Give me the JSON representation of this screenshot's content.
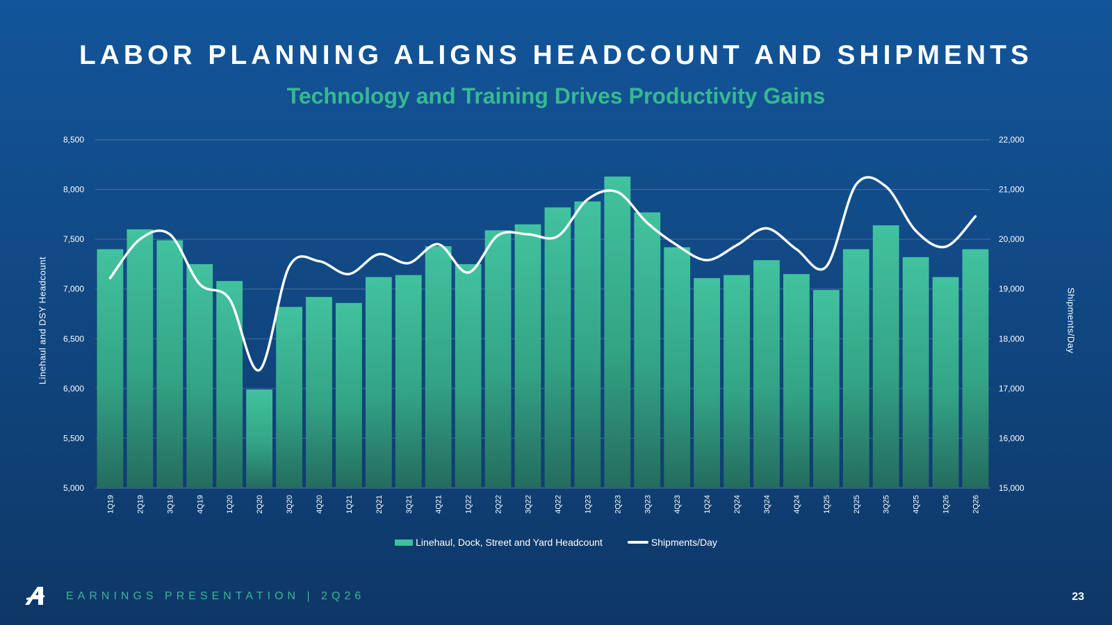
{
  "title": "LABOR PLANNING ALIGNS HEADCOUNT AND SHIPMENTS",
  "subtitle": "Technology and Training Drives Productivity Gains",
  "footer": {
    "text": "EARNINGS PRESENTATION  |  2Q26",
    "page_number": "23",
    "logo_icon": "company-logo-a-icon"
  },
  "colors": {
    "bar": "#3fbf9e",
    "line": "#ffffff",
    "subtitle": "#38b892",
    "background": "#12559a"
  },
  "chart_data": {
    "type": "bar",
    "combo": "bar-line-dual-axis",
    "categories": [
      "1Q19",
      "2Q19",
      "3Q19",
      "4Q19",
      "1Q20",
      "2Q20",
      "3Q20",
      "4Q20",
      "1Q21",
      "2Q21",
      "3Q21",
      "4Q21",
      "1Q22",
      "2Q22",
      "3Q22",
      "4Q22",
      "1Q23",
      "2Q23",
      "3Q23",
      "4Q23",
      "1Q24",
      "2Q24",
      "3Q24",
      "4Q24",
      "1Q25",
      "2Q25",
      "3Q25",
      "4Q25",
      "1Q26",
      "2Q26"
    ],
    "series": [
      {
        "name": "Linehaul, Dock, Street and Yard Headcount",
        "type": "bar",
        "axis": "left",
        "values": [
          7400,
          7600,
          7490,
          7250,
          7080,
          5990,
          6820,
          6920,
          6860,
          7120,
          7140,
          7430,
          7250,
          7590,
          7650,
          7820,
          7880,
          8130,
          7770,
          7420,
          7110,
          7140,
          7290,
          7150,
          6990,
          7400,
          7640,
          7320,
          7120,
          7400
        ]
      },
      {
        "name": "Shipments/Day",
        "type": "line",
        "axis": "right",
        "values": [
          19220,
          20000,
          20100,
          19100,
          18800,
          17370,
          19450,
          19560,
          19300,
          19700,
          19520,
          19900,
          19330,
          20080,
          20100,
          20060,
          20800,
          20950,
          20330,
          19880,
          19580,
          19880,
          20220,
          19800,
          19450,
          21100,
          21060,
          20170,
          19850,
          20460
        ]
      }
    ],
    "y_left": {
      "label": "Linehaul and DSY Headcount",
      "min": 5000,
      "max": 8500,
      "ticks": [
        "5,000",
        "5,500",
        "6,000",
        "6,500",
        "7,000",
        "7,500",
        "8,000",
        "8,500"
      ]
    },
    "y_right": {
      "label": "Shipments/Day",
      "min": 15000,
      "max": 22000,
      "ticks": [
        "15,000",
        "16,000",
        "17,000",
        "18,000",
        "19,000",
        "20,000",
        "21,000",
        "22,000"
      ]
    },
    "grid": true,
    "legend_position": "bottom-center"
  }
}
